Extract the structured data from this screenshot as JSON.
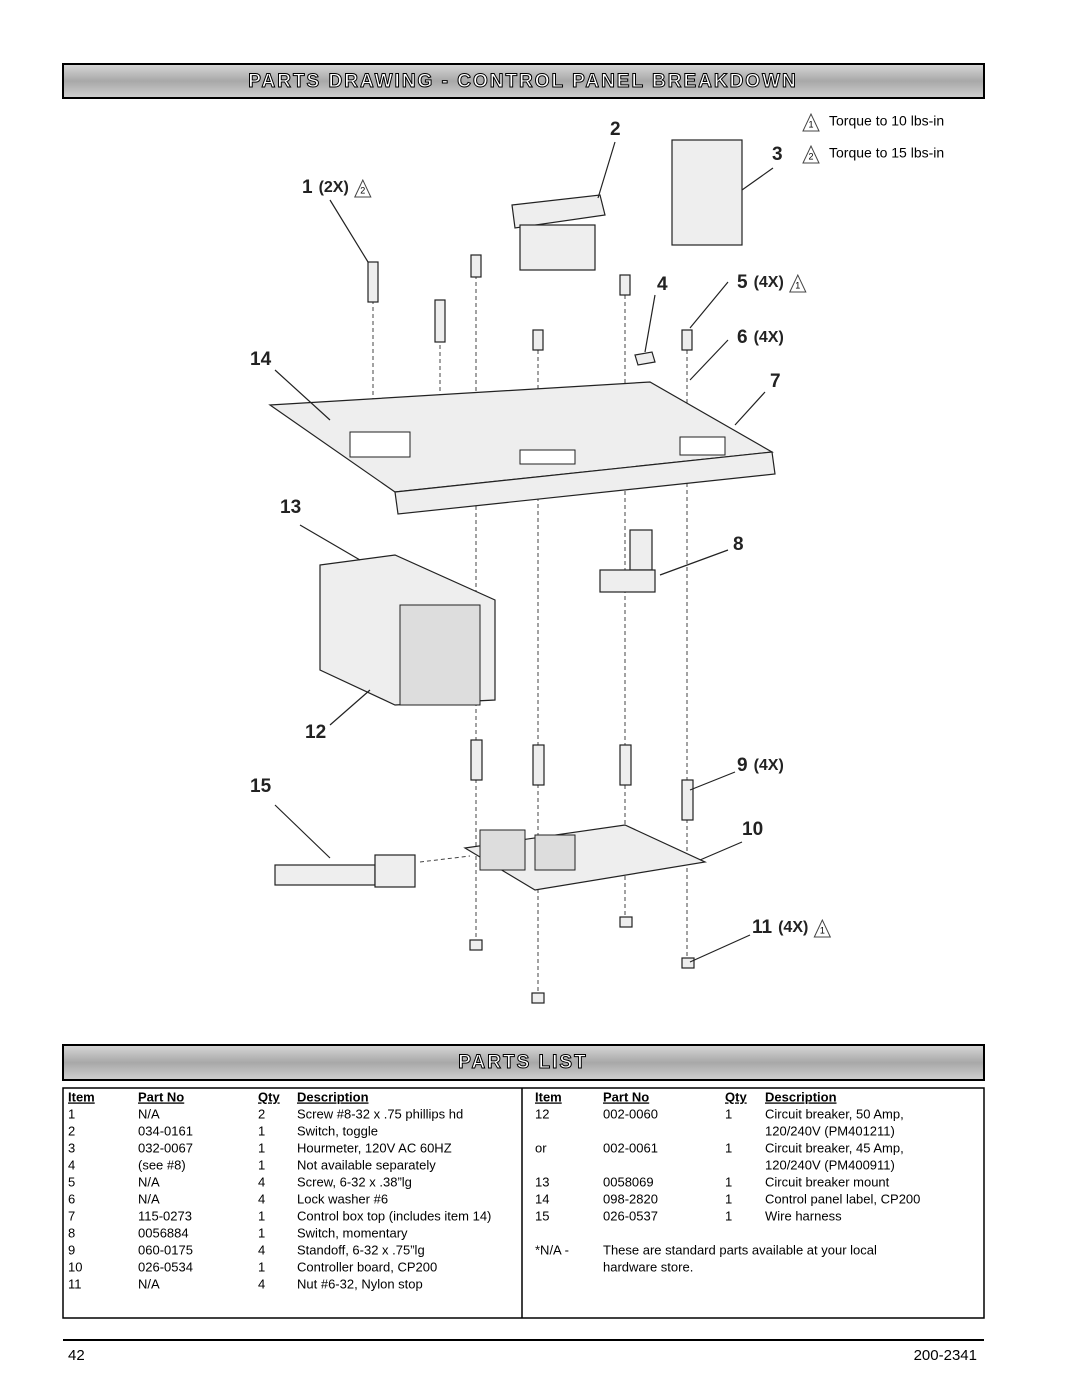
{
  "header": {
    "title": "PARTS DRAWING - CONTROL PANEL BREAKDOWN"
  },
  "legend": [
    {
      "marker": "1",
      "text": "Torque to 10 lbs-in"
    },
    {
      "marker": "2",
      "text": "Torque to 15 lbs-in"
    }
  ],
  "callouts": [
    {
      "number": "1",
      "qty": "(2X)",
      "torque": "2"
    },
    {
      "number": "2"
    },
    {
      "number": "3"
    },
    {
      "number": "4"
    },
    {
      "number": "5",
      "qty": "(4X)",
      "torque": "1"
    },
    {
      "number": "6",
      "qty": "(4X)"
    },
    {
      "number": "7"
    },
    {
      "number": "14"
    },
    {
      "number": "13"
    },
    {
      "number": "8"
    },
    {
      "number": "12"
    },
    {
      "number": "15"
    },
    {
      "number": "9",
      "qty": "(4X)"
    },
    {
      "number": "10"
    },
    {
      "number": "11",
      "qty": "(4X)",
      "torque": "1"
    }
  ],
  "parts_list": {
    "title": "PARTS LIST",
    "headers": [
      "Item",
      "Part No",
      "Qty",
      "Description"
    ],
    "left_rows": [
      {
        "item": "1",
        "part_no": "N/A",
        "qty": "2",
        "description": [
          "Screw #8-32 x .75 phillips hd"
        ]
      },
      {
        "item": "2",
        "part_no": "034-0161",
        "qty": "1",
        "description": [
          "Switch, toggle"
        ]
      },
      {
        "item": "3",
        "part_no": "032-0067",
        "qty": "1",
        "description": [
          "Hourmeter, 120V AC 60HZ"
        ]
      },
      {
        "item": "4",
        "part_no": "(see #8)",
        "qty": "1",
        "description": [
          "Not available separately"
        ]
      },
      {
        "item": "5",
        "part_no": "N/A",
        "qty": "4",
        "description": [
          "Screw, 6-32 x .38”lg"
        ]
      },
      {
        "item": "6",
        "part_no": "N/A",
        "qty": "4",
        "description": [
          "Lock washer #6"
        ]
      },
      {
        "item": "7",
        "part_no": "115-0273",
        "qty": "1",
        "description": [
          "Control box top (includes item 14)"
        ]
      },
      {
        "item": "8",
        "part_no": "0056884",
        "qty": "1",
        "description": [
          "Switch, momentary"
        ]
      },
      {
        "item": "9",
        "part_no": "060-0175",
        "qty": "4",
        "description": [
          "Standoff, 6-32 x .75”lg"
        ]
      },
      {
        "item": "10",
        "part_no": "026-0534",
        "qty": "1",
        "description": [
          "Controller board, CP200"
        ]
      },
      {
        "item": "11",
        "part_no": "N/A",
        "qty": "4",
        "description": [
          "Nut #6-32, Nylon stop"
        ]
      }
    ],
    "right_rows": [
      {
        "item": "12",
        "part_no": "002-0060",
        "qty": "1",
        "description": [
          "Circuit breaker, 50 Amp,",
          "120/240V (PM401211)"
        ]
      },
      {
        "item": "or",
        "part_no": "002-0061",
        "qty": "1",
        "description": [
          "Circuit breaker, 45 Amp,",
          "120/240V (PM400911)"
        ]
      },
      {
        "item": "13",
        "part_no": "0058069",
        "qty": "1",
        "description": [
          "Circuit breaker mount"
        ]
      },
      {
        "item": "14",
        "part_no": "098-2820",
        "qty": "1",
        "description": [
          "Control panel label, CP200"
        ]
      },
      {
        "item": "15",
        "part_no": "026-0537",
        "qty": "1",
        "description": [
          "Wire harness"
        ]
      }
    ],
    "note": {
      "label": "*N/A -",
      "text": [
        "These are standard parts available at your local",
        "hardware store."
      ]
    }
  },
  "footer": {
    "page": "42",
    "doc_number": "200-2341"
  }
}
